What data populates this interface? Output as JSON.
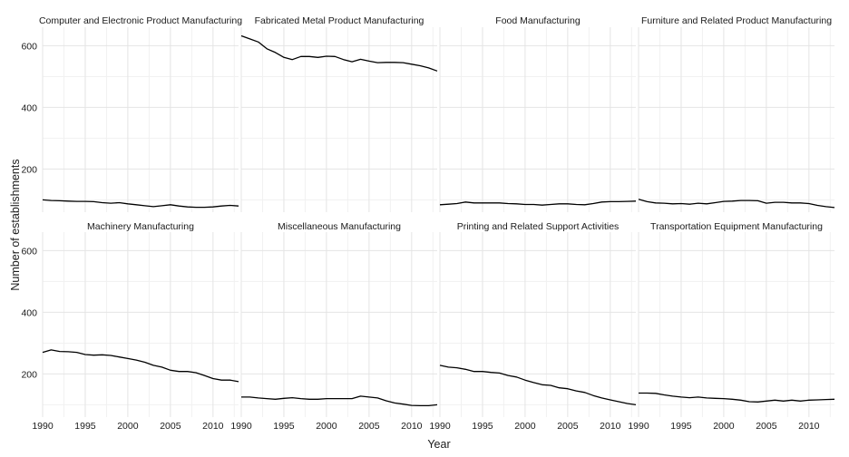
{
  "chart_data": {
    "type": "line",
    "layout": "facet-grid",
    "xlabel": "Year",
    "ylabel": "Number of establishments",
    "xlim": [
      1990,
      2013
    ],
    "ylim": [
      60,
      660
    ],
    "x_ticks": [
      1990,
      1995,
      2000,
      2005,
      2010
    ],
    "y_ticks": [
      200,
      400,
      600
    ],
    "grid": true,
    "x": [
      1990,
      1991,
      1992,
      1993,
      1994,
      1995,
      1996,
      1997,
      1998,
      1999,
      2000,
      2001,
      2002,
      2003,
      2004,
      2005,
      2006,
      2007,
      2008,
      2009,
      2010,
      2011,
      2012,
      2013
    ],
    "panels": [
      {
        "title": "Computer and Electronic Product Manufacturing",
        "values": [
          100,
          98,
          97,
          96,
          95,
          95,
          94,
          91,
          89,
          91,
          87,
          84,
          81,
          78,
          81,
          84,
          80,
          77,
          76,
          76,
          77,
          80,
          82,
          80
        ]
      },
      {
        "title": "Fabricated Metal Product Manufacturing",
        "values": [
          632,
          622,
          612,
          590,
          578,
          562,
          555,
          565,
          565,
          562,
          566,
          565,
          555,
          548,
          556,
          550,
          545,
          546,
          546,
          545,
          540,
          535,
          528,
          518
        ]
      },
      {
        "title": "Food Manufacturing",
        "values": [
          84,
          86,
          88,
          93,
          90,
          90,
          90,
          90,
          88,
          87,
          85,
          85,
          83,
          85,
          87,
          87,
          85,
          84,
          88,
          93,
          94,
          94,
          95,
          96
        ]
      },
      {
        "title": "Furniture and Related Product Manufacturing",
        "values": [
          102,
          94,
          90,
          89,
          87,
          88,
          86,
          89,
          87,
          91,
          95,
          96,
          98,
          98,
          97,
          89,
          92,
          92,
          90,
          90,
          88,
          82,
          78,
          75
        ]
      },
      {
        "title": "Machinery Manufacturing",
        "values": [
          270,
          278,
          273,
          272,
          270,
          263,
          261,
          262,
          260,
          255,
          250,
          245,
          238,
          228,
          222,
          212,
          208,
          208,
          204,
          195,
          185,
          180,
          180,
          175
        ]
      },
      {
        "title": "Miscellaneous Manufacturing",
        "values": [
          125,
          125,
          122,
          120,
          118,
          121,
          123,
          120,
          118,
          118,
          120,
          120,
          120,
          120,
          128,
          125,
          122,
          113,
          106,
          102,
          98,
          97,
          97,
          100
        ]
      },
      {
        "title": "Printing and Related Support Activities",
        "values": [
          228,
          222,
          220,
          215,
          208,
          208,
          205,
          203,
          195,
          190,
          180,
          172,
          165,
          163,
          155,
          152,
          145,
          140,
          130,
          122,
          116,
          110,
          104,
          100
        ]
      },
      {
        "title": "Transportation Equipment Manufacturing",
        "values": [
          138,
          138,
          137,
          132,
          128,
          125,
          123,
          125,
          122,
          121,
          120,
          118,
          115,
          110,
          109,
          112,
          115,
          112,
          115,
          112,
          115,
          116,
          117,
          118
        ]
      }
    ]
  }
}
